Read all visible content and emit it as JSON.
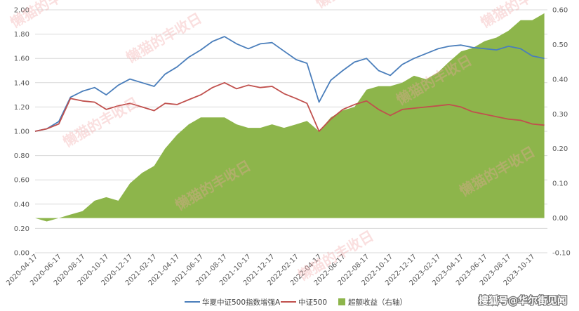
{
  "chart_data": {
    "type": "line",
    "x_ticks": [
      "2020-04-17",
      "2020-06-17",
      "2020-08-17",
      "2020-10-17",
      "2020-12-17",
      "2021-02-17",
      "2021-04-17",
      "2021-06-17",
      "2021-08-17",
      "2021-10-17",
      "2021-12-17",
      "2022-02-17",
      "2022-04-17",
      "2022-06-17",
      "2022-08-17",
      "2022-10-17",
      "2022-12-17",
      "2023-02-17",
      "2023-04-17",
      "2023-06-17",
      "2023-08-17",
      "2023-10-17"
    ],
    "y_left": {
      "ticks": [
        "0.00",
        "0.20",
        "0.40",
        "0.60",
        "0.80",
        "1.00",
        "1.20",
        "1.40",
        "1.60",
        "1.80",
        "2.00"
      ],
      "ylim": [
        0,
        2.0
      ]
    },
    "y_right": {
      "ticks": [
        "-0.10",
        "0.00",
        "0.10",
        "0.20",
        "0.30",
        "0.40",
        "0.50",
        "0.60"
      ],
      "ylim": [
        -0.1,
        0.6
      ]
    },
    "grid": "horizontal",
    "legend_position": "bottom",
    "series": [
      {
        "name": "华夏中证500指数增强A",
        "type": "line",
        "axis": "left",
        "color": "#4a7ebb",
        "x": [
          "2020-04-17",
          "2020-05-17",
          "2020-06-17",
          "2020-07-17",
          "2020-08-17",
          "2020-09-17",
          "2020-10-17",
          "2020-11-17",
          "2020-12-17",
          "2021-01-17",
          "2021-02-17",
          "2021-03-17",
          "2021-04-17",
          "2021-05-17",
          "2021-06-17",
          "2021-07-17",
          "2021-08-17",
          "2021-09-17",
          "2021-10-17",
          "2021-11-17",
          "2021-12-17",
          "2022-01-17",
          "2022-02-17",
          "2022-03-17",
          "2022-04-17",
          "2022-05-17",
          "2022-06-17",
          "2022-07-17",
          "2022-08-17",
          "2022-09-17",
          "2022-10-17",
          "2022-11-17",
          "2022-12-17",
          "2023-01-17",
          "2023-02-17",
          "2023-03-17",
          "2023-04-17",
          "2023-05-17",
          "2023-06-17",
          "2023-07-17",
          "2023-08-17",
          "2023-09-17",
          "2023-10-17",
          "2023-11-17"
        ],
        "values": [
          1.0,
          1.02,
          1.08,
          1.28,
          1.33,
          1.36,
          1.3,
          1.38,
          1.43,
          1.4,
          1.37,
          1.47,
          1.53,
          1.61,
          1.67,
          1.74,
          1.78,
          1.72,
          1.68,
          1.72,
          1.73,
          1.66,
          1.59,
          1.56,
          1.24,
          1.42,
          1.5,
          1.57,
          1.6,
          1.5,
          1.46,
          1.55,
          1.6,
          1.64,
          1.68,
          1.7,
          1.71,
          1.69,
          1.68,
          1.67,
          1.7,
          1.68,
          1.62,
          1.6
        ]
      },
      {
        "name": "中证500",
        "type": "line",
        "axis": "left",
        "color": "#c0504d",
        "x": [
          "2020-04-17",
          "2020-05-17",
          "2020-06-17",
          "2020-07-17",
          "2020-08-17",
          "2020-09-17",
          "2020-10-17",
          "2020-11-17",
          "2020-12-17",
          "2021-01-17",
          "2021-02-17",
          "2021-03-17",
          "2021-04-17",
          "2021-05-17",
          "2021-06-17",
          "2021-07-17",
          "2021-08-17",
          "2021-09-17",
          "2021-10-17",
          "2021-11-17",
          "2021-12-17",
          "2022-01-17",
          "2022-02-17",
          "2022-03-17",
          "2022-04-17",
          "2022-05-17",
          "2022-06-17",
          "2022-07-17",
          "2022-08-17",
          "2022-09-17",
          "2022-10-17",
          "2022-11-17",
          "2022-12-17",
          "2023-01-17",
          "2023-02-17",
          "2023-03-17",
          "2023-04-17",
          "2023-05-17",
          "2023-06-17",
          "2023-07-17",
          "2023-08-17",
          "2023-09-17",
          "2023-10-17",
          "2023-11-17"
        ],
        "values": [
          1.0,
          1.02,
          1.06,
          1.27,
          1.25,
          1.24,
          1.18,
          1.21,
          1.23,
          1.2,
          1.17,
          1.23,
          1.22,
          1.26,
          1.3,
          1.36,
          1.4,
          1.35,
          1.38,
          1.36,
          1.37,
          1.31,
          1.27,
          1.23,
          1.0,
          1.1,
          1.18,
          1.22,
          1.25,
          1.18,
          1.13,
          1.18,
          1.19,
          1.2,
          1.21,
          1.22,
          1.2,
          1.16,
          1.14,
          1.12,
          1.1,
          1.09,
          1.06,
          1.05
        ]
      },
      {
        "name": "超额收益（右轴）",
        "type": "area",
        "axis": "right",
        "color": "#8db54b",
        "x": [
          "2020-04-17",
          "2020-05-17",
          "2020-06-17",
          "2020-07-17",
          "2020-08-17",
          "2020-09-17",
          "2020-10-17",
          "2020-11-17",
          "2020-12-17",
          "2021-01-17",
          "2021-02-17",
          "2021-03-17",
          "2021-04-17",
          "2021-05-17",
          "2021-06-17",
          "2021-07-17",
          "2021-08-17",
          "2021-09-17",
          "2021-10-17",
          "2021-11-17",
          "2021-12-17",
          "2022-01-17",
          "2022-02-17",
          "2022-03-17",
          "2022-04-17",
          "2022-05-17",
          "2022-06-17",
          "2022-07-17",
          "2022-08-17",
          "2022-09-17",
          "2022-10-17",
          "2022-11-17",
          "2022-12-17",
          "2023-01-17",
          "2023-02-17",
          "2023-03-17",
          "2023-04-17",
          "2023-05-17",
          "2023-06-17",
          "2023-07-17",
          "2023-08-17",
          "2023-09-17",
          "2023-10-17",
          "2023-11-17"
        ],
        "values": [
          0.0,
          -0.01,
          0.0,
          0.01,
          0.02,
          0.05,
          0.06,
          0.05,
          0.1,
          0.13,
          0.15,
          0.2,
          0.24,
          0.27,
          0.29,
          0.29,
          0.29,
          0.27,
          0.26,
          0.26,
          0.27,
          0.26,
          0.27,
          0.28,
          0.25,
          0.29,
          0.31,
          0.32,
          0.37,
          0.38,
          0.38,
          0.39,
          0.41,
          0.4,
          0.42,
          0.45,
          0.48,
          0.49,
          0.51,
          0.52,
          0.54,
          0.57,
          0.57,
          0.59
        ]
      }
    ]
  },
  "watermark": {
    "text": "懒猫的丰收日",
    "color": "#f2a6a6"
  },
  "credit": {
    "text": "搜狐号@华尔街见闻"
  }
}
